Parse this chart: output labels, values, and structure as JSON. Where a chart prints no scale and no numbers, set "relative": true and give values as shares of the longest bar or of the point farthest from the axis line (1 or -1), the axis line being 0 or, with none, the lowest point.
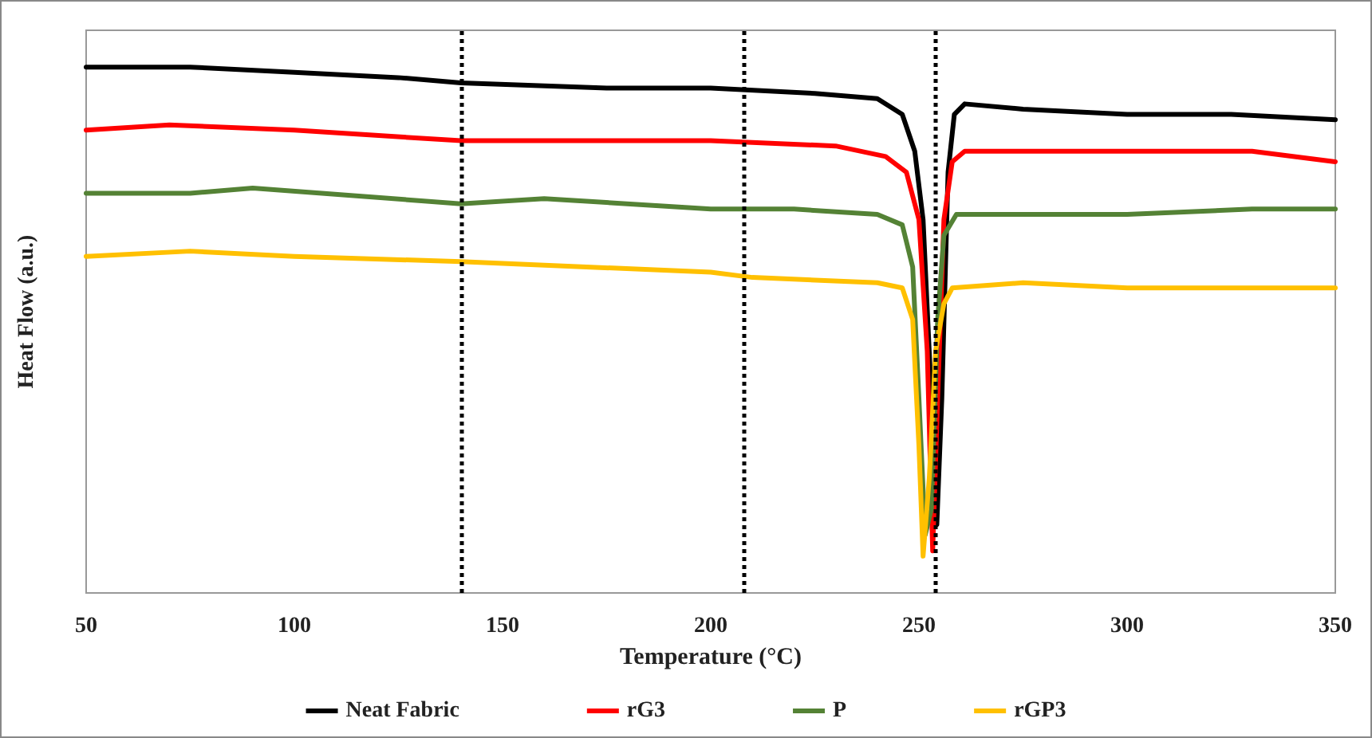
{
  "chart_data": {
    "type": "line",
    "relative": true,
    "xlabel": "Temperature (°C)",
    "ylabel": "Heat Flow (a.u.)",
    "xlim": [
      50,
      350
    ],
    "xticks": [
      50,
      100,
      150,
      200,
      250,
      300,
      350
    ],
    "grid": false,
    "legend": "bottom",
    "marker": "none",
    "line_style": "solid",
    "ref_lines": [
      {
        "axis": "x",
        "value": 140,
        "line_style": "dotted",
        "color": "#000000"
      },
      {
        "axis": "x",
        "value": 208,
        "line_style": "dotted",
        "color": "#000000"
      },
      {
        "axis": "x",
        "value": 254,
        "line_style": "dotted",
        "color": "#000000"
      }
    ],
    "series": [
      {
        "name": "Neat Fabric",
        "color": "#000000",
        "x": [
          50,
          75,
          100,
          125,
          140,
          175,
          200,
          225,
          240,
          246,
          249,
          251,
          253,
          254.3,
          255.5,
          257,
          258.5,
          261,
          275,
          300,
          325,
          350
        ],
        "values": [
          1.0,
          1.0,
          0.99,
          0.98,
          0.97,
          0.96,
          0.96,
          0.95,
          0.94,
          0.91,
          0.84,
          0.71,
          0.37,
          0.13,
          0.37,
          0.8,
          0.91,
          0.93,
          0.92,
          0.91,
          0.91,
          0.9
        ]
      },
      {
        "name": "rG3",
        "color": "#ff0000",
        "x": [
          50,
          70,
          100,
          140,
          200,
          230,
          242,
          247,
          250,
          252,
          253.3,
          254.5,
          256,
          258,
          261,
          300,
          330,
          350
        ],
        "values": [
          0.88,
          0.89,
          0.88,
          0.86,
          0.86,
          0.85,
          0.83,
          0.8,
          0.71,
          0.46,
          0.08,
          0.37,
          0.71,
          0.82,
          0.84,
          0.84,
          0.84,
          0.82
        ]
      },
      {
        "name": "P",
        "color": "#548235",
        "x": [
          50,
          75,
          90,
          140,
          160,
          200,
          220,
          240,
          246,
          248.5,
          250,
          251.5,
          253,
          254.5,
          256,
          259,
          275,
          300,
          330,
          350
        ],
        "values": [
          0.76,
          0.76,
          0.77,
          0.74,
          0.75,
          0.73,
          0.73,
          0.72,
          0.7,
          0.62,
          0.37,
          0.11,
          0.16,
          0.52,
          0.68,
          0.72,
          0.72,
          0.72,
          0.73,
          0.73
        ]
      },
      {
        "name": "rGP3",
        "color": "#ffc000",
        "x": [
          50,
          75,
          100,
          140,
          200,
          210,
          240,
          246,
          248.5,
          250,
          251,
          252.5,
          254,
          256,
          258,
          275,
          300,
          350
        ],
        "values": [
          0.64,
          0.65,
          0.64,
          0.63,
          0.61,
          0.6,
          0.59,
          0.58,
          0.52,
          0.28,
          0.07,
          0.22,
          0.46,
          0.55,
          0.58,
          0.59,
          0.58,
          0.58
        ]
      }
    ]
  }
}
